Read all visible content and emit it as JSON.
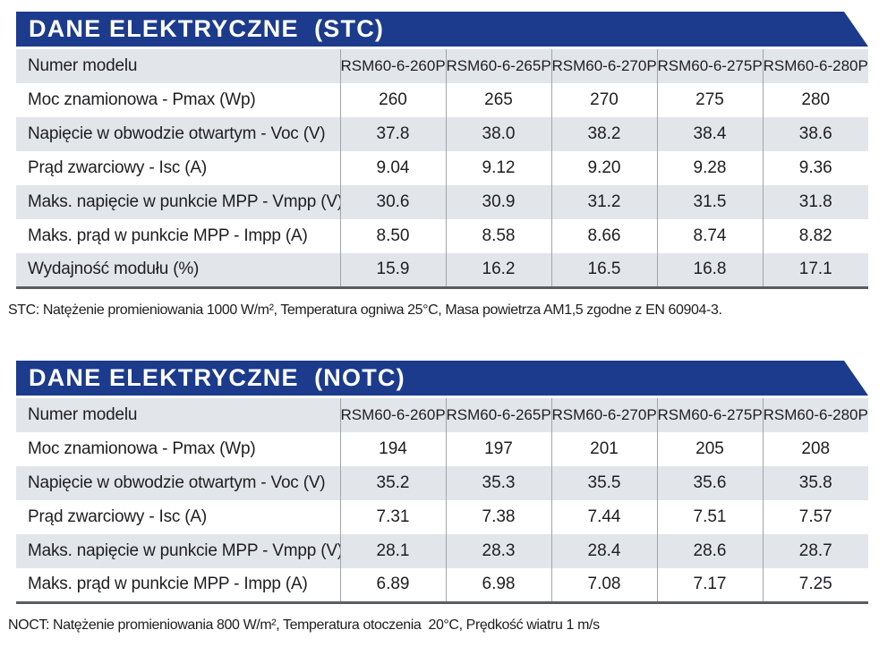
{
  "page": {
    "background": "#ffffff",
    "accent_color": "#1c3b8c",
    "stripe_color": "#e2e6ea",
    "banner_text_color": "#ffffff",
    "separator_color": "#a0a5ab",
    "bottom_border_color": "#595c60"
  },
  "tables": [
    {
      "title": "DANE ELEKTRYCZNE  (STC)",
      "header_label": "Numer modelu",
      "models": [
        "RSM60-6-260P",
        "RSM60-6-265P",
        "RSM60-6-270P",
        "RSM60-6-275P",
        "RSM60-6-280P"
      ],
      "rows": [
        {
          "label": "Moc znamionowa - Pmax (Wp)",
          "values": [
            "260",
            "265",
            "270",
            "275",
            "280"
          ]
        },
        {
          "label": "Napięcie w obwodzie otwartym - Voc (V)",
          "values": [
            "37.8",
            "38.0",
            "38.2",
            "38.4",
            "38.6"
          ]
        },
        {
          "label": "Prąd zwarciowy - Isc (A)",
          "values": [
            "9.04",
            "9.12",
            "9.20",
            "9.28",
            "9.36"
          ]
        },
        {
          "label": "Maks. napięcie w punkcie MPP - Vmpp (V)",
          "values": [
            "30.6",
            "30.9",
            "31.2",
            "31.5",
            "31.8"
          ]
        },
        {
          "label": "Maks. prąd w punkcie MPP - Impp (A)",
          "values": [
            "8.50",
            "8.58",
            "8.66",
            "8.74",
            "8.82"
          ]
        },
        {
          "label": "Wydajność modułu (%)",
          "values": [
            "15.9",
            "16.2",
            "16.5",
            "16.8",
            "17.1"
          ]
        }
      ],
      "note": "STC: Natężenie promieniowania 1000 W/m², Temperatura ogniwa 25°C, Masa powietrza AM1,5 zgodne z EN 60904-3."
    },
    {
      "title": "DANE ELEKTRYCZNE  (NOTC)",
      "header_label": "Numer modelu",
      "models": [
        "RSM60-6-260P",
        "RSM60-6-265P",
        "RSM60-6-270P",
        "RSM60-6-275P",
        "RSM60-6-280P"
      ],
      "rows": [
        {
          "label": "Moc znamionowa - Pmax (Wp)",
          "values": [
            "194",
            "197",
            "201",
            "205",
            "208"
          ]
        },
        {
          "label": "Napięcie w obwodzie otwartym - Voc (V)",
          "values": [
            "35.2",
            "35.3",
            "35.5",
            "35.6",
            "35.8"
          ]
        },
        {
          "label": "Prąd zwarciowy - Isc (A)",
          "values": [
            "7.31",
            "7.38",
            "7.44",
            "7.51",
            "7.57"
          ]
        },
        {
          "label": "Maks. napięcie w punkcie MPP - Vmpp (V)",
          "values": [
            "28.1",
            "28.3",
            "28.4",
            "28.6",
            "28.7"
          ]
        },
        {
          "label": "Maks. prąd w punkcie MPP - Impp (A)",
          "values": [
            "6.89",
            "6.98",
            "7.08",
            "7.17",
            "7.25"
          ]
        }
      ],
      "note": "NOCT: Natężenie promieniowania 800 W/m², Temperatura otoczenia  20°C, Prędkość wiatru 1 m/s"
    }
  ]
}
